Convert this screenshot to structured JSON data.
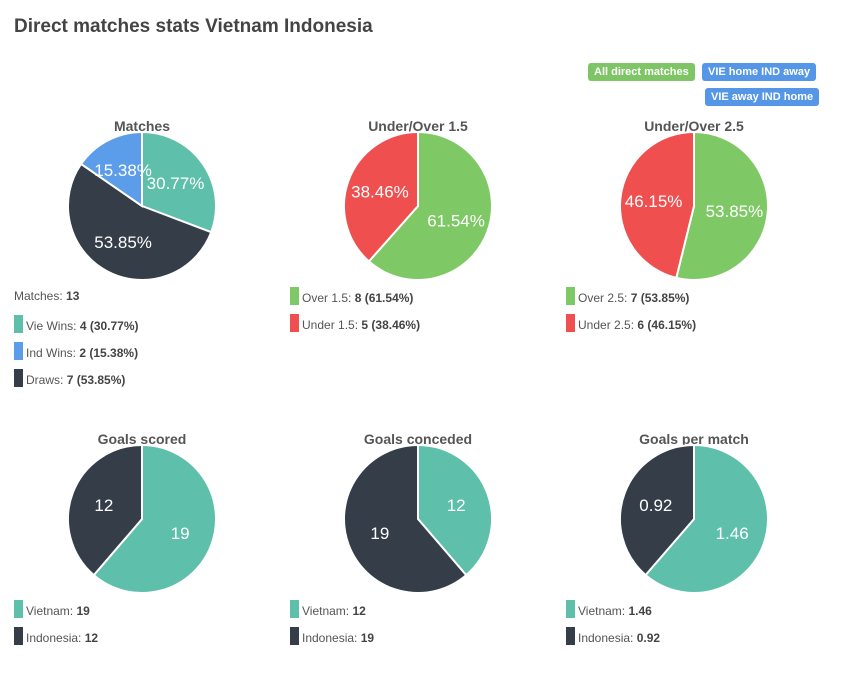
{
  "title": "Direct matches stats Vietnam Indonesia",
  "filters": [
    {
      "label": "All direct matches",
      "color": "#7dc565"
    },
    {
      "label": "VIE home IND away",
      "color": "#5596e6"
    },
    {
      "label": "VIE away IND home",
      "color": "#5596e6"
    }
  ],
  "charts": [
    {
      "title": "Matches",
      "header": {
        "label": "Matches:",
        "value": "13"
      },
      "slices": [
        {
          "value": 30.77,
          "label": "30.77%",
          "color": "#5ebfaa"
        },
        {
          "value": 53.85,
          "label": "53.85%",
          "color": "#343d48"
        },
        {
          "value": 15.38,
          "label": "15.38%",
          "color": "#5b9de8"
        }
      ],
      "legend": [
        {
          "label": "Vie Wins:",
          "value": "4 (30.77%)",
          "color": "#5ebfaa"
        },
        {
          "label": "Ind Wins:",
          "value": "2 (15.38%)",
          "color": "#5b9de8"
        },
        {
          "label": "Draws:",
          "value": "7 (53.85%)",
          "color": "#343d48"
        }
      ]
    },
    {
      "title": "Under/Over 1.5",
      "slices": [
        {
          "value": 61.54,
          "label": "61.54%",
          "color": "#7fc866"
        },
        {
          "value": 38.46,
          "label": "38.46%",
          "color": "#ef4f4f"
        }
      ],
      "legend": [
        {
          "label": "Over 1.5:",
          "value": "8 (61.54%)",
          "color": "#7fc866"
        },
        {
          "label": "Under 1.5:",
          "value": "5 (38.46%)",
          "color": "#ef4f4f"
        }
      ]
    },
    {
      "title": "Under/Over 2.5",
      "slices": [
        {
          "value": 53.85,
          "label": "53.85%",
          "color": "#7fc866"
        },
        {
          "value": 46.15,
          "label": "46.15%",
          "color": "#ef4f4f"
        }
      ],
      "legend": [
        {
          "label": "Over 2.5:",
          "value": "7 (53.85%)",
          "color": "#7fc866"
        },
        {
          "label": "Under 2.5:",
          "value": "6 (46.15%)",
          "color": "#ef4f4f"
        }
      ]
    },
    {
      "title": "Goals scored",
      "slices": [
        {
          "value": 19,
          "label": "19",
          "color": "#5ebfaa"
        },
        {
          "value": 12,
          "label": "12",
          "color": "#343d48"
        }
      ],
      "legend": [
        {
          "label": "Vietnam:",
          "value": "19",
          "color": "#5ebfaa"
        },
        {
          "label": "Indonesia:",
          "value": "12",
          "color": "#343d48"
        }
      ]
    },
    {
      "title": "Goals conceded",
      "slices": [
        {
          "value": 12,
          "label": "12",
          "color": "#5ebfaa"
        },
        {
          "value": 19,
          "label": "19",
          "color": "#343d48"
        }
      ],
      "legend": [
        {
          "label": "Vietnam:",
          "value": "12",
          "color": "#5ebfaa"
        },
        {
          "label": "Indonesia:",
          "value": "19",
          "color": "#343d48"
        }
      ]
    },
    {
      "title": "Goals per match",
      "slices": [
        {
          "value": 1.46,
          "label": "1.46",
          "color": "#5ebfaa"
        },
        {
          "value": 0.92,
          "label": "0.92",
          "color": "#343d48"
        }
      ],
      "legend": [
        {
          "label": "Vietnam:",
          "value": "1.46",
          "color": "#5ebfaa"
        },
        {
          "label": "Indonesia:",
          "value": "0.92",
          "color": "#343d48"
        }
      ]
    }
  ]
}
